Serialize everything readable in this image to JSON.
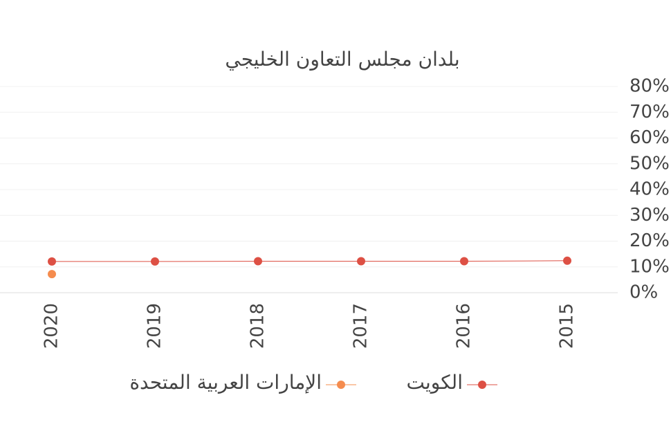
{
  "chart_data": {
    "type": "line",
    "title": "بلدان مجلس التعاون الخليجي",
    "categories": [
      "2020",
      "2019",
      "2018",
      "2017",
      "2016",
      "2015"
    ],
    "series": [
      {
        "name": "الكويت",
        "color": "#dd5044",
        "values": [
          12.1,
          12.1,
          12.2,
          12.2,
          12.2,
          12.4
        ]
      },
      {
        "name": "الإمارات العربية المتحدة",
        "color": "#f58c4e",
        "values": [
          7.2,
          null,
          null,
          null,
          null,
          null
        ]
      }
    ],
    "ylim": [
      0,
      80
    ],
    "yticks": [
      {
        "value": 0,
        "label": "0%"
      },
      {
        "value": 10,
        "label": "10%"
      },
      {
        "value": 20,
        "label": "20%"
      },
      {
        "value": 30,
        "label": "30%"
      },
      {
        "value": 40,
        "label": "40%"
      },
      {
        "value": 50,
        "label": "50%"
      },
      {
        "value": 60,
        "label": "60%"
      },
      {
        "value": 70,
        "label": "70%"
      },
      {
        "value": 80,
        "label": "80%"
      }
    ],
    "grid": true,
    "y_axis_side": "right",
    "legend": "bottom"
  }
}
